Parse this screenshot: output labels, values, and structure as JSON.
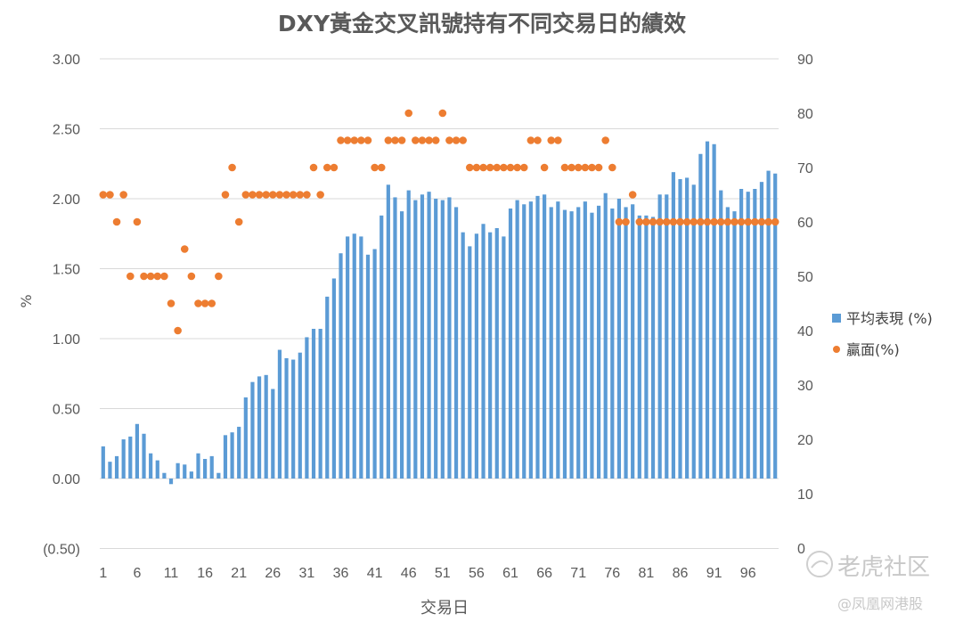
{
  "chart_data": {
    "type": "bar+scatter",
    "title": "DXY黃金交叉訊號持有不同交易日的績效",
    "xlabel": "交易日",
    "ylabel": "%",
    "y_left": {
      "min": -0.5,
      "max": 3.0,
      "ticks": [
        "(0.50)",
        "0.00",
        "0.50",
        "1.00",
        "1.50",
        "2.00",
        "2.50",
        "3.00"
      ],
      "tick_values": [
        -0.5,
        0,
        0.5,
        1,
        1.5,
        2,
        2.5,
        3
      ],
      "negative_color": "#c00000"
    },
    "y_right": {
      "min": 0,
      "max": 90,
      "ticks": [
        "0",
        "10",
        "20",
        "30",
        "40",
        "50",
        "60",
        "70",
        "80",
        "90"
      ],
      "tick_values": [
        0,
        10,
        20,
        30,
        40,
        50,
        60,
        70,
        80,
        90
      ]
    },
    "x_ticks": [
      "1",
      "6",
      "11",
      "16",
      "21",
      "26",
      "31",
      "36",
      "41",
      "46",
      "51",
      "56",
      "61",
      "66",
      "71",
      "76",
      "81",
      "86",
      "91",
      "96"
    ],
    "x_tick_days": [
      1,
      6,
      11,
      16,
      21,
      26,
      31,
      36,
      41,
      46,
      51,
      56,
      61,
      66,
      71,
      76,
      81,
      86,
      91,
      96
    ],
    "grid": true,
    "legend_position": "right",
    "series": [
      {
        "name": "平均表現 (%)",
        "type": "bar",
        "axis": "left",
        "color": "#5b9bd5",
        "values": [
          0.23,
          0.12,
          0.16,
          0.28,
          0.3,
          0.39,
          0.32,
          0.18,
          0.13,
          0.04,
          -0.04,
          0.11,
          0.1,
          0.05,
          0.18,
          0.14,
          0.16,
          0.04,
          0.31,
          0.33,
          0.37,
          0.58,
          0.69,
          0.73,
          0.74,
          0.64,
          0.92,
          0.86,
          0.85,
          0.9,
          1.01,
          1.07,
          1.07,
          1.3,
          1.43,
          1.61,
          1.73,
          1.75,
          1.73,
          1.6,
          1.64,
          1.88,
          2.1,
          2.01,
          1.91,
          2.06,
          1.99,
          2.03,
          2.05,
          2.0,
          1.99,
          2.01,
          1.94,
          1.76,
          1.66,
          1.75,
          1.82,
          1.76,
          1.79,
          1.73,
          1.93,
          1.99,
          1.96,
          1.98,
          2.02,
          2.03,
          1.94,
          1.98,
          1.92,
          1.91,
          1.94,
          1.98,
          1.9,
          1.95,
          2.04,
          1.93,
          2.0,
          1.94,
          1.96,
          1.88,
          1.88,
          1.87,
          2.03,
          2.03,
          2.19,
          2.14,
          2.15,
          2.1,
          2.32,
          2.41,
          2.39,
          2.06,
          1.94,
          1.91,
          2.07,
          2.05,
          2.07,
          2.12,
          2.2,
          2.18
        ]
      },
      {
        "name": "贏面(%)",
        "type": "scatter",
        "axis": "right",
        "color": "#ed7d31",
        "values": [
          65,
          65,
          60,
          65,
          50,
          60,
          50,
          50,
          50,
          50,
          45,
          40,
          55,
          50,
          45,
          45,
          45,
          50,
          65,
          70,
          60,
          65,
          65,
          65,
          65,
          65,
          65,
          65,
          65,
          65,
          65,
          70,
          65,
          70,
          70,
          75,
          75,
          75,
          75,
          75,
          70,
          70,
          75,
          75,
          75,
          80,
          75,
          75,
          75,
          75,
          80,
          75,
          75,
          75,
          70,
          70,
          70,
          70,
          70,
          70,
          70,
          70,
          70,
          75,
          75,
          70,
          75,
          75,
          70,
          70,
          70,
          70,
          70,
          70,
          75,
          70,
          60,
          60,
          65,
          60,
          60,
          60,
          60,
          60,
          60,
          60,
          60,
          60,
          60,
          60,
          60,
          60,
          60,
          60,
          60,
          60,
          60,
          60,
          60,
          60
        ]
      }
    ]
  },
  "watermark": {
    "brand": "老虎社区",
    "source": "@凤凰网港股"
  }
}
